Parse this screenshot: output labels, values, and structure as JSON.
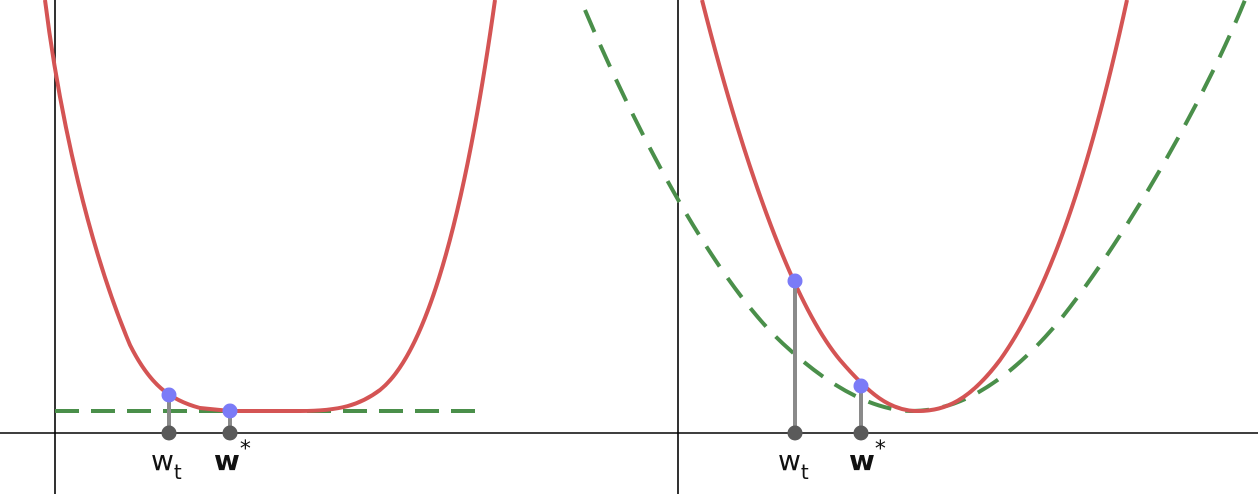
{
  "panels": [
    {
      "id": "left",
      "labels": {
        "wt_base": "w",
        "wt_sub": "t",
        "wstar_base": "w",
        "wstar_sup": "*"
      }
    },
    {
      "id": "right",
      "labels": {
        "wt_base": "w",
        "wt_sub": "t",
        "wstar_base": "w",
        "wstar_sup": "*"
      }
    }
  ],
  "colors": {
    "curve": "#d45454",
    "surrogate": "#4a8f4a",
    "point_on_curve": "#7b7bf7",
    "stem": "#8a8a8a",
    "axis_point": "#5a5a5a",
    "axis": "#000000"
  }
}
